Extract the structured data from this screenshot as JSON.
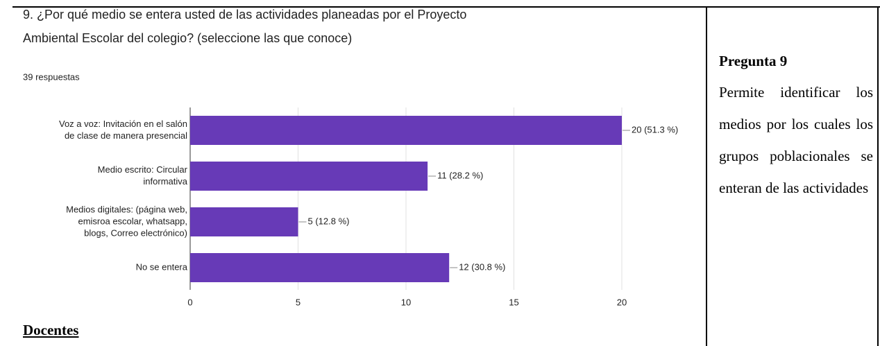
{
  "chart_data": {
    "type": "bar",
    "orientation": "horizontal",
    "title": [
      "9. ¿Por qué medio se entera usted de las actividades planeadas por el Proyecto",
      "Ambiental Escolar del colegio? (seleccione las que conoce)"
    ],
    "subtitle": "39 respuestas",
    "categories": [
      [
        "Voz a voz: Invitación en el salón",
        "de clase de manera presencial"
      ],
      [
        "Medio escrito: Circular",
        "informativa"
      ],
      [
        "Medios digitales: (página web,",
        "emisroa escolar, whatsapp,",
        "blogs, Correo electrónico)"
      ],
      [
        "No se entera"
      ]
    ],
    "values": [
      20,
      11,
      5,
      12
    ],
    "value_labels": [
      "20 (51.3 %)",
      "11 (28.2 %)",
      "5 (12.8 %)",
      "12 (30.8 %)"
    ],
    "color": "#673ab7",
    "xlim": [
      0,
      20
    ],
    "xticks": [
      0,
      5,
      10,
      15,
      20
    ],
    "grid": true
  },
  "document": {
    "section": "Docentes",
    "heading": "Pregunta 9",
    "description": "Permite identificar los medios por los cuales los grupos poblacionales se enteran de las actividades"
  }
}
